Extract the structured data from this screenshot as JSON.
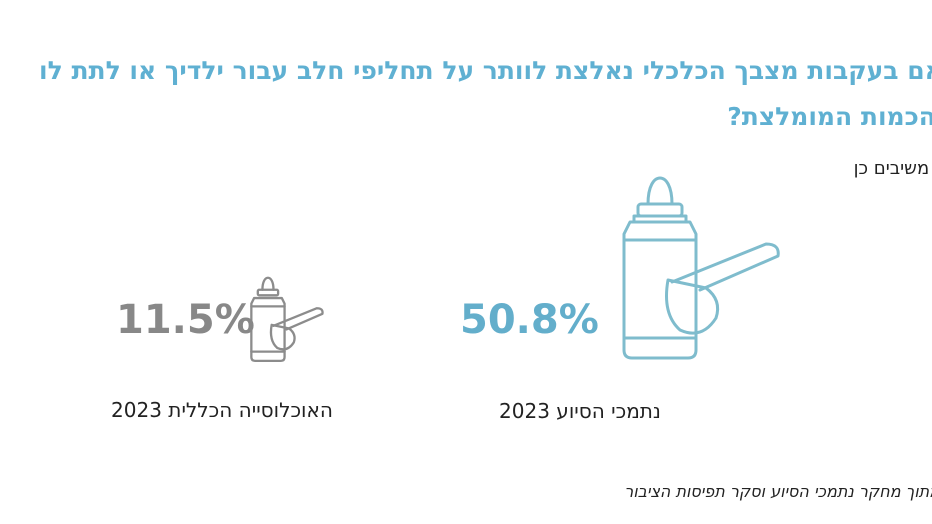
{
  "header": {
    "title_line1": "האם בעקבות מצבך הכלכלי נאלצת לוותר על תחליפי חלב עבור ילדיך או לתת לו",
    "title_line2": "הכמות המומלצת?",
    "subtitle": "% משיבים כן"
  },
  "stats": [
    {
      "value": "50.8%",
      "label": "נתמכי הסיוע 2023"
    },
    {
      "value": "11.5%",
      "label": "האוכלוסייה הכללית 2023"
    }
  ],
  "footer": "מתוך מחקר נתמכי הסיוע וסקר תפיסות הציבור"
}
